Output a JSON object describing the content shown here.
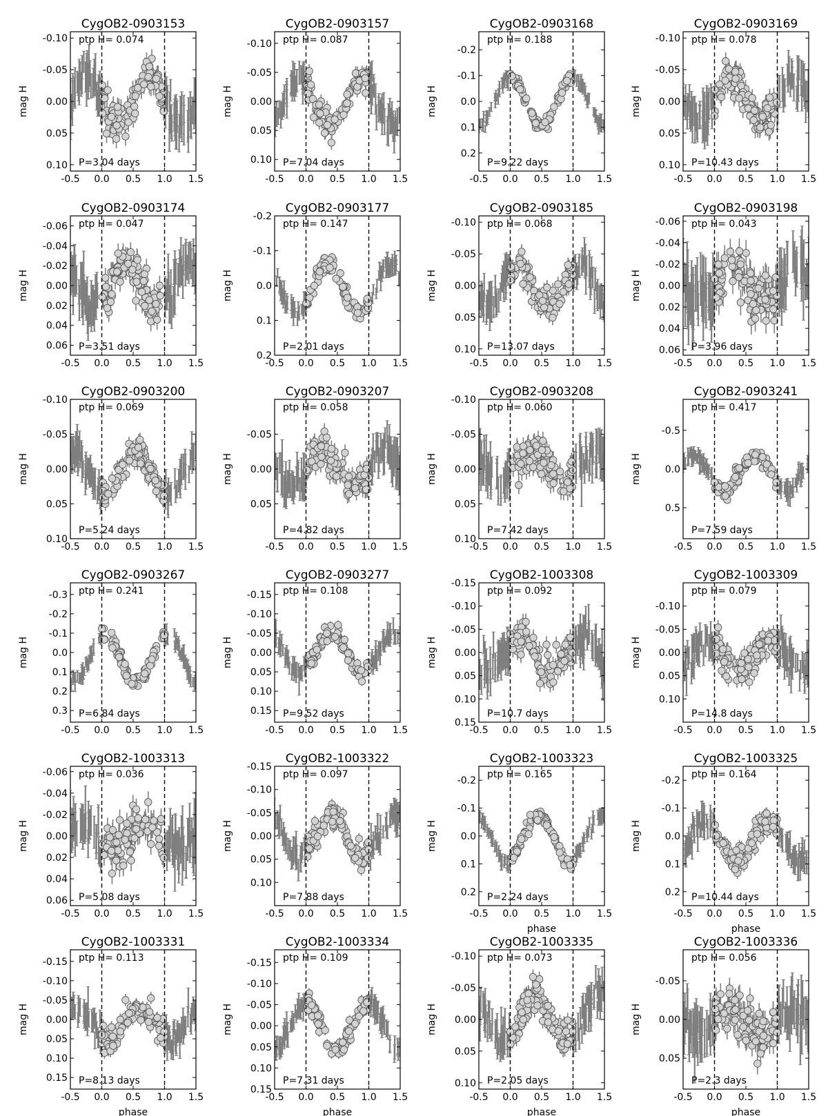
{
  "figure": {
    "xlabel": "phase",
    "ylabel": "mag H",
    "ptp_prefix": "ptp H=",
    "period_prefix": "P=",
    "period_suffix": "days"
  },
  "chart_data": [
    {
      "type": "scatter",
      "title": "CygOB2-0903153",
      "ptp": "0.074",
      "period": "3.04",
      "ylim": [
        0.11,
        -0.11
      ],
      "yticks": [
        "-0.10",
        "-0.05",
        "0.00",
        "0.05",
        "0.10"
      ],
      "xlim": [
        -0.5,
        1.5
      ],
      "xticks": [
        "-0.5",
        "0.0",
        "0.5",
        "1.0",
        "1.5"
      ],
      "xlabel_shown": false,
      "shape": {
        "type": "sin",
        "amp": 0.035,
        "center": 0.0,
        "peak": 0.75,
        "noise": 0.015
      }
    },
    {
      "type": "scatter",
      "title": "CygOB2-0903157",
      "ptp": "0.087",
      "period": "7.04",
      "ylim": [
        0.12,
        -0.12
      ],
      "yticks": [
        "-0.10",
        "-0.05",
        "0.00",
        "0.05",
        "0.10"
      ],
      "xlim": [
        -0.5,
        1.5
      ],
      "xticks": [
        "-0.5",
        "0.0",
        "0.5",
        "1.0",
        "1.5"
      ],
      "xlabel_shown": false,
      "shape": {
        "type": "sin",
        "amp": 0.042,
        "center": 0.0,
        "peak": 0.9,
        "noise": 0.012
      }
    },
    {
      "type": "scatter",
      "title": "CygOB2-0903168",
      "ptp": "0.188",
      "period": "9.22",
      "ylim": [
        0.27,
        -0.27
      ],
      "yticks": [
        "-0.2",
        "-0.1",
        "0.0",
        "0.1",
        "0.2"
      ],
      "xlim": [
        -0.5,
        1.5
      ],
      "xticks": [
        "-0.5",
        "0.0",
        "0.5",
        "1.0",
        "1.5"
      ],
      "xlabel_shown": false,
      "shape": {
        "type": "sin",
        "amp": 0.095,
        "center": 0.0,
        "peak": 0.0,
        "noise": 0.012
      }
    },
    {
      "type": "scatter",
      "title": "CygOB2-0903169",
      "ptp": "0.078",
      "period": "10.43",
      "ylim": [
        0.11,
        -0.11
      ],
      "yticks": [
        "-0.10",
        "-0.05",
        "0.00",
        "0.05",
        "0.10"
      ],
      "xlim": [
        -0.5,
        1.5
      ],
      "xticks": [
        "-0.5",
        "0.0",
        "0.5",
        "1.0",
        "1.5"
      ],
      "xlabel_shown": false,
      "shape": {
        "type": "sin",
        "amp": 0.035,
        "center": 0.0,
        "peak": 0.25,
        "noise": 0.014
      }
    },
    {
      "type": "scatter",
      "title": "CygOB2-0903174",
      "ptp": "0.047",
      "period": "3.51",
      "ylim": [
        0.07,
        -0.07
      ],
      "yticks": [
        "-0.06",
        "-0.04",
        "-0.02",
        "0.00",
        "0.02",
        "0.04",
        "0.06"
      ],
      "xlim": [
        -0.5,
        1.5
      ],
      "xticks": [
        "-0.5",
        "0.0",
        "0.5",
        "1.0",
        "1.5"
      ],
      "xlabel_shown": false,
      "shape": {
        "type": "sin",
        "amp": 0.022,
        "center": 0.0,
        "peak": 0.4,
        "noise": 0.01
      }
    },
    {
      "type": "scatter",
      "title": "CygOB2-0903177",
      "ptp": "0.147",
      "period": "2.01",
      "ylim": [
        0.2,
        -0.2
      ],
      "yticks": [
        "-0.2",
        "-0.1",
        "0.0",
        "0.1",
        "0.2"
      ],
      "xlim": [
        -0.5,
        1.5
      ],
      "xticks": [
        "-0.5",
        "0.0",
        "0.5",
        "1.0",
        "1.5"
      ],
      "xlabel_shown": false,
      "shape": {
        "type": "sin",
        "amp": 0.07,
        "center": 0.01,
        "peak": 0.35,
        "noise": 0.012
      }
    },
    {
      "type": "scatter",
      "title": "CygOB2-0903185",
      "ptp": "0.068",
      "period": "13.07",
      "ylim": [
        0.11,
        -0.11
      ],
      "yticks": [
        "-0.10",
        "-0.05",
        "0.00",
        "0.05",
        "0.10"
      ],
      "xlim": [
        -0.5,
        1.5
      ],
      "xticks": [
        "-0.5",
        "0.0",
        "0.5",
        "1.0",
        "1.5"
      ],
      "xlabel_shown": false,
      "shape": {
        "type": "sin",
        "amp": 0.032,
        "center": 0.0,
        "peak": 0.1,
        "noise": 0.012
      }
    },
    {
      "type": "scatter",
      "title": "CygOB2-0903198",
      "ptp": "0.043",
      "period": "3.96",
      "ylim": [
        0.065,
        -0.065
      ],
      "yticks": [
        "-0.06",
        "-0.04",
        "-0.02",
        "0.00",
        "0.02",
        "0.04",
        "0.06"
      ],
      "xlim": [
        -0.5,
        1.5
      ],
      "xticks": [
        "-0.5",
        "0.0",
        "0.5",
        "1.0",
        "1.5"
      ],
      "xlabel_shown": false,
      "shape": {
        "type": "sin",
        "amp": 0.015,
        "center": 0.0,
        "peak": 0.3,
        "noise": 0.012
      }
    },
    {
      "type": "scatter",
      "title": "CygOB2-0903200",
      "ptp": "0.069",
      "period": "5.24",
      "ylim": [
        0.1,
        -0.1
      ],
      "yticks": [
        "-0.10",
        "-0.05",
        "0.00",
        "0.05",
        "0.10"
      ],
      "xlim": [
        -0.5,
        1.5
      ],
      "xticks": [
        "-0.5",
        "0.0",
        "0.5",
        "1.0",
        "1.5"
      ],
      "xlabel_shown": false,
      "shape": {
        "type": "sin",
        "amp": 0.032,
        "center": 0.005,
        "peak": 0.55,
        "noise": 0.01
      }
    },
    {
      "type": "scatter",
      "title": "CygOB2-0903207",
      "ptp": "0.058",
      "period": "4.82",
      "ylim": [
        0.1,
        -0.1
      ],
      "yticks": [
        "-0.05",
        "0.00",
        "0.05"
      ],
      "xlim": [
        -0.5,
        1.5
      ],
      "xticks": [
        "-0.5",
        "0.0",
        "0.5",
        "1.0",
        "1.5"
      ],
      "xlabel_shown": false,
      "shape": {
        "type": "sin",
        "amp": 0.025,
        "center": 0.0,
        "peak": 0.25,
        "noise": 0.012
      }
    },
    {
      "type": "scatter",
      "title": "CygOB2-0903208",
      "ptp": "0.060",
      "period": "7.42",
      "ylim": [
        0.1,
        -0.1
      ],
      "yticks": [
        "-0.10",
        "-0.05",
        "0.00",
        "0.05",
        "0.10"
      ],
      "xlim": [
        -0.5,
        1.5
      ],
      "xticks": [
        "-0.5",
        "0.0",
        "0.5",
        "1.0",
        "1.5"
      ],
      "xlabel_shown": false,
      "shape": {
        "type": "sin",
        "amp": 0.022,
        "center": 0.0,
        "peak": 0.35,
        "noise": 0.013
      }
    },
    {
      "type": "scatter",
      "title": "CygOB2-0903241",
      "ptp": "0.417",
      "period": "7.59",
      "ylim": [
        0.9,
        -0.9
      ],
      "yticks": [
        "-0.5",
        "0.0",
        "0.5"
      ],
      "xlim": [
        -0.5,
        1.5
      ],
      "xticks": [
        "-0.5",
        "0.0",
        "0.5",
        "1.0",
        "1.5"
      ],
      "xlabel_shown": false,
      "shape": {
        "type": "sin",
        "amp": 0.22,
        "center": 0.05,
        "peak": 0.65,
        "noise": 0.05
      }
    },
    {
      "type": "scatter",
      "title": "CygOB2-0903267",
      "ptp": "0.241",
      "period": "6.84",
      "ylim": [
        0.36,
        -0.36
      ],
      "yticks": [
        "-0.3",
        "-0.2",
        "-0.1",
        "0.0",
        "0.1",
        "0.2",
        "0.3"
      ],
      "xlim": [
        -0.5,
        1.5
      ],
      "xticks": [
        "-0.5",
        "0.0",
        "0.5",
        "1.0",
        "1.5"
      ],
      "xlabel_shown": false,
      "shape": {
        "type": "sin",
        "amp": 0.12,
        "center": 0.03,
        "peak": 0.05,
        "noise": 0.018
      }
    },
    {
      "type": "scatter",
      "title": "CygOB2-0903277",
      "ptp": "0.108",
      "period": "9.52",
      "ylim": [
        0.18,
        -0.18
      ],
      "yticks": [
        "-0.15",
        "-0.10",
        "-0.05",
        "0.00",
        "0.05",
        "0.10",
        "0.15"
      ],
      "xlim": [
        -0.5,
        1.5
      ],
      "xticks": [
        "-0.5",
        "0.0",
        "0.5",
        "1.0",
        "1.5"
      ],
      "xlabel_shown": false,
      "shape": {
        "type": "sin",
        "amp": 0.05,
        "center": 0.0,
        "peak": 0.4,
        "noise": 0.012
      }
    },
    {
      "type": "scatter",
      "title": "CygOB2-1003308",
      "ptp": "0.092",
      "period": "10.7",
      "ylim": [
        0.15,
        -0.15
      ],
      "yticks": [
        "-0.15",
        "-0.10",
        "-0.05",
        "0.00",
        "0.05",
        "0.10",
        "0.15"
      ],
      "xlim": [
        -0.5,
        1.5
      ],
      "xticks": [
        "-0.5",
        "0.0",
        "0.5",
        "1.0",
        "1.5"
      ],
      "xlabel_shown": false,
      "shape": {
        "type": "sin",
        "amp": 0.035,
        "center": 0.005,
        "peak": 0.15,
        "noise": 0.018
      }
    },
    {
      "type": "scatter",
      "title": "CygOB2-1003309",
      "ptp": "0.079",
      "period": "14.8",
      "ylim": [
        0.15,
        -0.15
      ],
      "yticks": [
        "-0.10",
        "-0.05",
        "0.00",
        "0.05",
        "0.10"
      ],
      "xlim": [
        -0.5,
        1.5
      ],
      "xticks": [
        "-0.5",
        "0.0",
        "0.5",
        "1.0",
        "1.5"
      ],
      "xlabel_shown": false,
      "shape": {
        "type": "sin",
        "amp": 0.035,
        "center": 0.005,
        "peak": 0.9,
        "noise": 0.016
      }
    },
    {
      "type": "scatter",
      "title": "CygOB2-1003313",
      "ptp": "0.036",
      "period": "5.08",
      "ylim": [
        0.065,
        -0.065
      ],
      "yticks": [
        "-0.06",
        "-0.04",
        "-0.02",
        "0.00",
        "0.02",
        "0.04",
        "0.06"
      ],
      "xlim": [
        -0.5,
        1.5
      ],
      "xticks": [
        "-0.5",
        "0.0",
        "0.5",
        "1.0",
        "1.5"
      ],
      "xlabel_shown": false,
      "shape": {
        "type": "sin",
        "amp": 0.012,
        "center": 0.0,
        "peak": 0.7,
        "noise": 0.01
      }
    },
    {
      "type": "scatter",
      "title": "CygOB2-1003322",
      "ptp": "0.097",
      "period": "7.88",
      "ylim": [
        0.15,
        -0.15
      ],
      "yticks": [
        "-0.15",
        "-0.10",
        "-0.05",
        "0.00",
        "0.05",
        "0.10"
      ],
      "xlim": [
        -0.5,
        1.5
      ],
      "xticks": [
        "-0.5",
        "0.0",
        "0.5",
        "1.0",
        "1.5"
      ],
      "xlabel_shown": false,
      "shape": {
        "type": "sin",
        "amp": 0.045,
        "center": 0.0,
        "peak": 0.4,
        "noise": 0.012
      }
    },
    {
      "type": "scatter",
      "title": "CygOB2-1003323",
      "ptp": "0.165",
      "period": "2.24",
      "ylim": [
        0.25,
        -0.25
      ],
      "yticks": [
        "-0.2",
        "-0.1",
        "0.0",
        "0.1",
        "0.2"
      ],
      "xlim": [
        -0.5,
        1.5
      ],
      "xticks": [
        "-0.5",
        "0.0",
        "0.5",
        "1.0",
        "1.5"
      ],
      "xlabel_shown": true,
      "shape": {
        "type": "sin",
        "amp": 0.08,
        "center": 0.01,
        "peak": 0.45,
        "noise": 0.012
      }
    },
    {
      "type": "scatter",
      "title": "CygOB2-1003325",
      "ptp": "0.164",
      "period": "10.44",
      "ylim": [
        0.25,
        -0.25
      ],
      "yticks": [
        "-0.2",
        "-0.1",
        "0.0",
        "0.1",
        "0.2"
      ],
      "xlim": [
        -0.5,
        1.5
      ],
      "xticks": [
        "-0.5",
        "0.0",
        "0.5",
        "1.0",
        "1.5"
      ],
      "xlabel_shown": true,
      "shape": {
        "type": "sin",
        "amp": 0.07,
        "center": 0.02,
        "peak": 0.85,
        "noise": 0.022
      }
    },
    {
      "type": "scatter",
      "title": "CygOB2-1003331",
      "ptp": "0.113",
      "period": "8.13",
      "ylim": [
        0.18,
        -0.18
      ],
      "yticks": [
        "-0.15",
        "-0.10",
        "-0.05",
        "0.00",
        "0.05",
        "0.10",
        "0.15"
      ],
      "xlim": [
        -0.5,
        1.5
      ],
      "xticks": [
        "-0.5",
        "0.0",
        "0.5",
        "1.0",
        "1.5"
      ],
      "xlabel_shown": true,
      "shape": {
        "type": "sin",
        "amp": 0.045,
        "center": 0.01,
        "peak": 0.6,
        "noise": 0.016
      }
    },
    {
      "type": "scatter",
      "title": "CygOB2-1003334",
      "ptp": "0.109",
      "period": "7.31",
      "ylim": [
        0.15,
        -0.18
      ],
      "yticks": [
        "-0.15",
        "-0.10",
        "-0.05",
        "0.00",
        "0.05",
        "0.10",
        "0.15"
      ],
      "xlim": [
        -0.5,
        1.5
      ],
      "xticks": [
        "-0.5",
        "0.0",
        "0.5",
        "1.0",
        "1.5"
      ],
      "xlabel_shown": true,
      "shape": {
        "type": "sin",
        "amp": 0.05,
        "center": 0.0,
        "peak": 0.0,
        "noise": 0.012
      }
    },
    {
      "type": "scatter",
      "title": "CygOB2-1003335",
      "ptp": "0.073",
      "period": "2.05",
      "ylim": [
        0.11,
        -0.11
      ],
      "yticks": [
        "-0.10",
        "-0.05",
        "0.00",
        "0.05",
        "0.10"
      ],
      "xlim": [
        -0.5,
        1.5
      ],
      "xticks": [
        "-0.5",
        "0.0",
        "0.5",
        "1.0",
        "1.5"
      ],
      "xlabel_shown": true,
      "shape": {
        "type": "sin",
        "amp": 0.035,
        "center": 0.0,
        "peak": 0.4,
        "noise": 0.012
      }
    },
    {
      "type": "scatter",
      "title": "CygOB2-1003336",
      "ptp": "0.056",
      "period": "2.3",
      "ylim": [
        0.09,
        -0.09
      ],
      "yticks": [
        "-0.05",
        "0.00",
        "0.05"
      ],
      "xlim": [
        -0.5,
        1.5
      ],
      "xticks": [
        "-0.5",
        "0.0",
        "0.5",
        "1.0",
        "1.5"
      ],
      "xlabel_shown": true,
      "shape": {
        "type": "sin",
        "amp": 0.02,
        "center": 0.0,
        "peak": 0.2,
        "noise": 0.014
      }
    }
  ]
}
